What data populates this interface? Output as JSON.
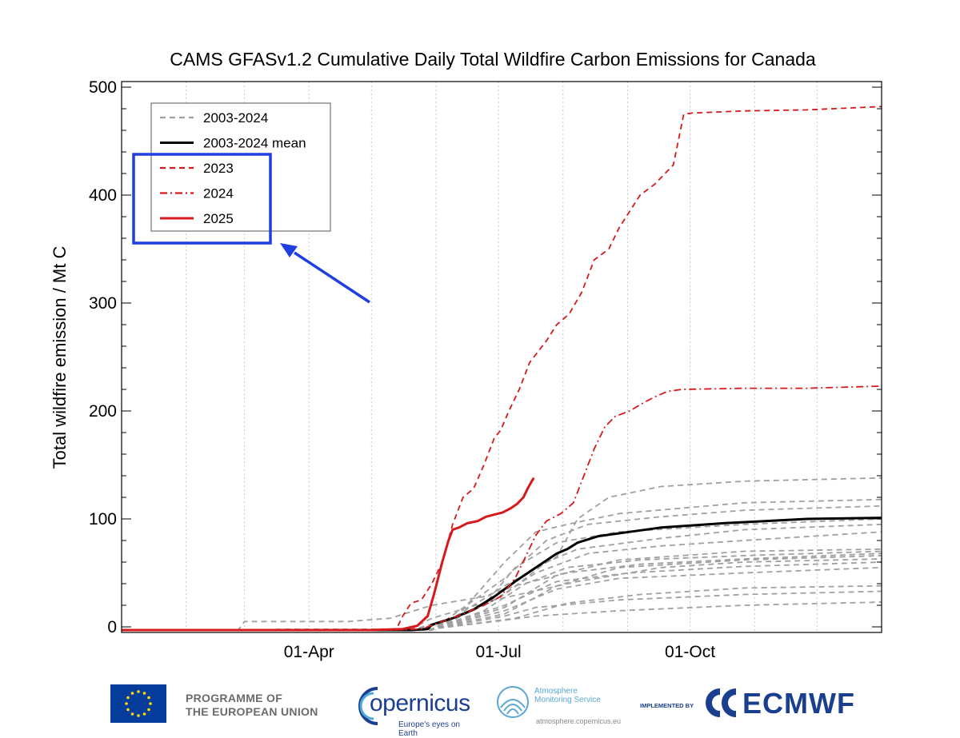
{
  "chart_data": {
    "type": "line",
    "title": "CAMS GFASv1.2 Cumulative Daily Total Wildfire Carbon Emissions for Canada",
    "ylabel": "Total wildfire emission / Mt C",
    "xlabel": "",
    "x_unit": "day of year",
    "xlim": [
      1,
      366
    ],
    "ylim": [
      -5,
      500
    ],
    "y_ticks": [
      0,
      100,
      200,
      300,
      400,
      500
    ],
    "x_ticks": [
      {
        "label": "01-Apr",
        "doy": 91
      },
      {
        "label": "01-Jul",
        "doy": 182
      },
      {
        "label": "01-Oct",
        "doy": 274
      }
    ],
    "legend": {
      "placement": "top-left",
      "entries": [
        {
          "label": "2003-2024",
          "color": "#a0a0a0",
          "style": "dashed"
        },
        {
          "label": "2003-2024 mean",
          "color": "#000000",
          "style": "solid"
        },
        {
          "label": "2023",
          "color": "#d7191c",
          "style": "dashed"
        },
        {
          "label": "2024",
          "color": "#d7191c",
          "style": "dashdot"
        },
        {
          "label": "2025",
          "color": "#d7191c",
          "style": "solid"
        }
      ]
    },
    "background_years": [
      {
        "name": "2003-2024 (a)",
        "points": [
          [
            1,
            -3
          ],
          [
            110,
            -3
          ],
          [
            140,
            -2
          ],
          [
            150,
            8
          ],
          [
            180,
            25
          ],
          [
            220,
            42
          ],
          [
            260,
            55
          ],
          [
            300,
            60
          ],
          [
            366,
            63
          ]
        ]
      },
      {
        "name": "2003-2024 (b)",
        "points": [
          [
            1,
            -3
          ],
          [
            140,
            -3
          ],
          [
            160,
            5
          ],
          [
            185,
            60
          ],
          [
            200,
            88
          ],
          [
            215,
            95
          ],
          [
            240,
            105
          ],
          [
            300,
            115
          ],
          [
            366,
            118
          ]
        ]
      },
      {
        "name": "2003-2024 (c)",
        "points": [
          [
            1,
            -3
          ],
          [
            140,
            -3
          ],
          [
            160,
            8
          ],
          [
            185,
            38
          ],
          [
            210,
            65
          ],
          [
            220,
            100
          ],
          [
            235,
            120
          ],
          [
            260,
            130
          ],
          [
            300,
            135
          ],
          [
            366,
            138
          ]
        ]
      },
      {
        "name": "2003-2024 (d)",
        "points": [
          [
            1,
            -3
          ],
          [
            150,
            -3
          ],
          [
            175,
            20
          ],
          [
            190,
            55
          ],
          [
            210,
            78
          ],
          [
            240,
            88
          ],
          [
            300,
            95
          ],
          [
            366,
            100
          ]
        ]
      },
      {
        "name": "2003-2024 (e)",
        "points": [
          [
            1,
            -3
          ],
          [
            150,
            -2
          ],
          [
            185,
            15
          ],
          [
            210,
            35
          ],
          [
            240,
            45
          ],
          [
            300,
            50
          ],
          [
            366,
            55
          ]
        ]
      },
      {
        "name": "2003-2024 (f)",
        "points": [
          [
            1,
            -3
          ],
          [
            150,
            -2
          ],
          [
            185,
            10
          ],
          [
            200,
            18
          ],
          [
            240,
            25
          ],
          [
            300,
            30
          ],
          [
            366,
            33
          ]
        ]
      },
      {
        "name": "2003-2024 (g)",
        "points": [
          [
            1,
            -3
          ],
          [
            150,
            -2
          ],
          [
            185,
            12
          ],
          [
            210,
            38
          ],
          [
            240,
            55
          ],
          [
            300,
            62
          ],
          [
            366,
            66
          ]
        ]
      },
      {
        "name": "2003-2024 (h)",
        "points": [
          [
            1,
            -3
          ],
          [
            150,
            -2
          ],
          [
            180,
            25
          ],
          [
            200,
            50
          ],
          [
            225,
            68
          ],
          [
            260,
            75
          ],
          [
            300,
            80
          ],
          [
            366,
            88
          ]
        ]
      },
      {
        "name": "2003-2024 (i)",
        "points": [
          [
            1,
            -3
          ],
          [
            150,
            -3
          ],
          [
            185,
            18
          ],
          [
            210,
            48
          ],
          [
            240,
            62
          ],
          [
            300,
            70
          ],
          [
            366,
            72
          ]
        ]
      },
      {
        "name": "2003-2024 (j)",
        "points": [
          [
            1,
            -3
          ],
          [
            150,
            -2
          ],
          [
            180,
            5
          ],
          [
            200,
            10
          ],
          [
            240,
            15
          ],
          [
            300,
            20
          ],
          [
            366,
            23
          ]
        ]
      },
      {
        "name": "2003-2024 (k)",
        "points": [
          [
            1,
            -3
          ],
          [
            150,
            -2
          ],
          [
            185,
            30
          ],
          [
            205,
            60
          ],
          [
            220,
            72
          ],
          [
            260,
            82
          ],
          [
            300,
            90
          ],
          [
            366,
            95
          ]
        ]
      },
      {
        "name": "2003-2024 (l)",
        "points": [
          [
            1,
            -3
          ],
          [
            150,
            -3
          ],
          [
            185,
            45
          ],
          [
            205,
            80
          ],
          [
            225,
            95
          ],
          [
            260,
            102
          ],
          [
            300,
            108
          ],
          [
            366,
            112
          ]
        ]
      },
      {
        "name": "2003-2024 (m)",
        "points": [
          [
            1,
            -3
          ],
          [
            150,
            -2
          ],
          [
            190,
            8
          ],
          [
            215,
            22
          ],
          [
            250,
            30
          ],
          [
            300,
            36
          ],
          [
            366,
            38
          ]
        ]
      },
      {
        "name": "2003-2024 (n)",
        "points": [
          [
            1,
            -3
          ],
          [
            150,
            -2
          ],
          [
            185,
            20
          ],
          [
            210,
            42
          ],
          [
            245,
            50
          ],
          [
            300,
            56
          ],
          [
            366,
            60
          ]
        ]
      },
      {
        "name": "2003-2024 (o)",
        "points": [
          [
            1,
            -3
          ],
          [
            57,
            -3
          ],
          [
            60,
            5
          ],
          [
            70,
            5
          ],
          [
            110,
            5
          ],
          [
            130,
            8
          ],
          [
            150,
            20
          ],
          [
            175,
            28
          ],
          [
            190,
            38
          ],
          [
            215,
            50
          ],
          [
            250,
            58
          ],
          [
            300,
            63
          ],
          [
            366,
            68
          ]
        ]
      },
      {
        "name": "2003-2024 (p)",
        "points": [
          [
            1,
            -3
          ],
          [
            150,
            -2
          ],
          [
            175,
            15
          ],
          [
            195,
            40
          ],
          [
            215,
            55
          ],
          [
            250,
            62
          ],
          [
            300,
            66
          ],
          [
            366,
            70
          ]
        ]
      }
    ],
    "series": [
      {
        "name": "2003-2024 mean",
        "color": "#000000",
        "style": "solid",
        "width": 3,
        "points": [
          [
            1,
            -3
          ],
          [
            140,
            -3
          ],
          [
            148,
            -2
          ],
          [
            150,
            2
          ],
          [
            160,
            8
          ],
          [
            170,
            16
          ],
          [
            180,
            28
          ],
          [
            190,
            42
          ],
          [
            200,
            55
          ],
          [
            210,
            68
          ],
          [
            215,
            72
          ],
          [
            220,
            78
          ],
          [
            230,
            84
          ],
          [
            245,
            88
          ],
          [
            260,
            92
          ],
          [
            275,
            94
          ],
          [
            290,
            96
          ],
          [
            310,
            98
          ],
          [
            330,
            100
          ],
          [
            366,
            101
          ]
        ]
      },
      {
        "name": "2023",
        "color": "#d7191c",
        "style": "dashed",
        "width": 1.8,
        "points": [
          [
            1,
            -3
          ],
          [
            120,
            -3
          ],
          [
            133,
            -2
          ],
          [
            136,
            10
          ],
          [
            140,
            22
          ],
          [
            145,
            25
          ],
          [
            150,
            40
          ],
          [
            155,
            60
          ],
          [
            160,
            95
          ],
          [
            165,
            120
          ],
          [
            170,
            128
          ],
          [
            175,
            150
          ],
          [
            180,
            175
          ],
          [
            183,
            182
          ],
          [
            187,
            200
          ],
          [
            192,
            220
          ],
          [
            197,
            245
          ],
          [
            205,
            265
          ],
          [
            210,
            280
          ],
          [
            216,
            290
          ],
          [
            222,
            310
          ],
          [
            228,
            340
          ],
          [
            235,
            350
          ],
          [
            240,
            370
          ],
          [
            245,
            385
          ],
          [
            250,
            400
          ],
          [
            257,
            410
          ],
          [
            262,
            420
          ],
          [
            266,
            428
          ],
          [
            271,
            475
          ],
          [
            275,
            476
          ],
          [
            300,
            478
          ],
          [
            330,
            479
          ],
          [
            366,
            482
          ]
        ]
      },
      {
        "name": "2024",
        "color": "#d7191c",
        "style": "dashdot",
        "width": 1.8,
        "points": [
          [
            1,
            -3
          ],
          [
            130,
            -3
          ],
          [
            145,
            -2
          ],
          [
            155,
            5
          ],
          [
            165,
            12
          ],
          [
            175,
            20
          ],
          [
            183,
            28
          ],
          [
            190,
            45
          ],
          [
            195,
            65
          ],
          [
            200,
            85
          ],
          [
            205,
            98
          ],
          [
            212,
            105
          ],
          [
            218,
            115
          ],
          [
            223,
            140
          ],
          [
            228,
            165
          ],
          [
            233,
            185
          ],
          [
            238,
            195
          ],
          [
            245,
            200
          ],
          [
            252,
            208
          ],
          [
            257,
            213
          ],
          [
            263,
            218
          ],
          [
            270,
            220
          ],
          [
            300,
            221
          ],
          [
            330,
            221
          ],
          [
            366,
            223
          ]
        ]
      },
      {
        "name": "2025",
        "color": "#d7191c",
        "style": "solid",
        "width": 3,
        "points": [
          [
            1,
            -3
          ],
          [
            120,
            -3
          ],
          [
            136,
            -2
          ],
          [
            143,
            1
          ],
          [
            148,
            10
          ],
          [
            151,
            30
          ],
          [
            155,
            60
          ],
          [
            158,
            80
          ],
          [
            160,
            90
          ],
          [
            163,
            92
          ],
          [
            167,
            96
          ],
          [
            172,
            98
          ],
          [
            176,
            102
          ],
          [
            180,
            104
          ],
          [
            184,
            106
          ],
          [
            188,
            110
          ],
          [
            191,
            114
          ],
          [
            194,
            120
          ],
          [
            196,
            128
          ],
          [
            198,
            135
          ],
          [
            199,
            138
          ]
        ]
      }
    ]
  },
  "highlight": {
    "color": "#1f3fe0"
  },
  "footer": {
    "eu_text_line1": "PROGRAMME OF",
    "eu_text_line2": "THE EUROPEAN UNION",
    "copernicus_word": "opernicus",
    "copernicus_tagline": "Europe's eyes on Earth",
    "atmo_line1": "Atmosphere",
    "atmo_line2": "Monitoring Service",
    "atmo_url": "atmosphere.copernicus.eu",
    "implemented_by": "IMPLEMENTED BY",
    "ecmwf": "ECMWF"
  }
}
